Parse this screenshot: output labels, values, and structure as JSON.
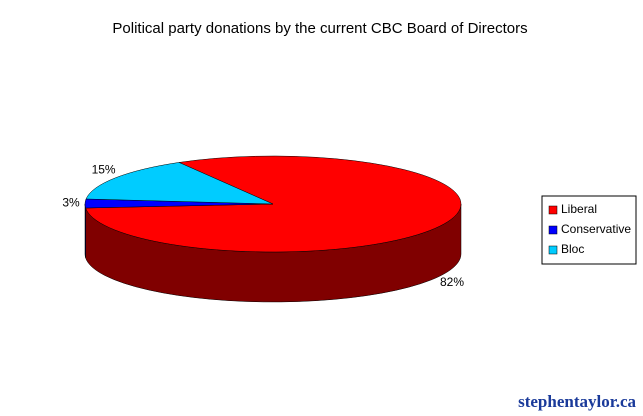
{
  "chart_data": {
    "type": "pie",
    "title": "Political party donations by the current CBC Board of Directors",
    "categories": [
      "Liberal",
      "Conservative",
      "Bloc"
    ],
    "values": [
      82,
      3,
      15
    ],
    "value_labels": [
      "82%",
      "3%",
      "15%"
    ],
    "colors": [
      "#ff0000",
      "#0000ff",
      "#00ccff"
    ],
    "legend": "right"
  },
  "watermark": "stephentaylor.ca"
}
